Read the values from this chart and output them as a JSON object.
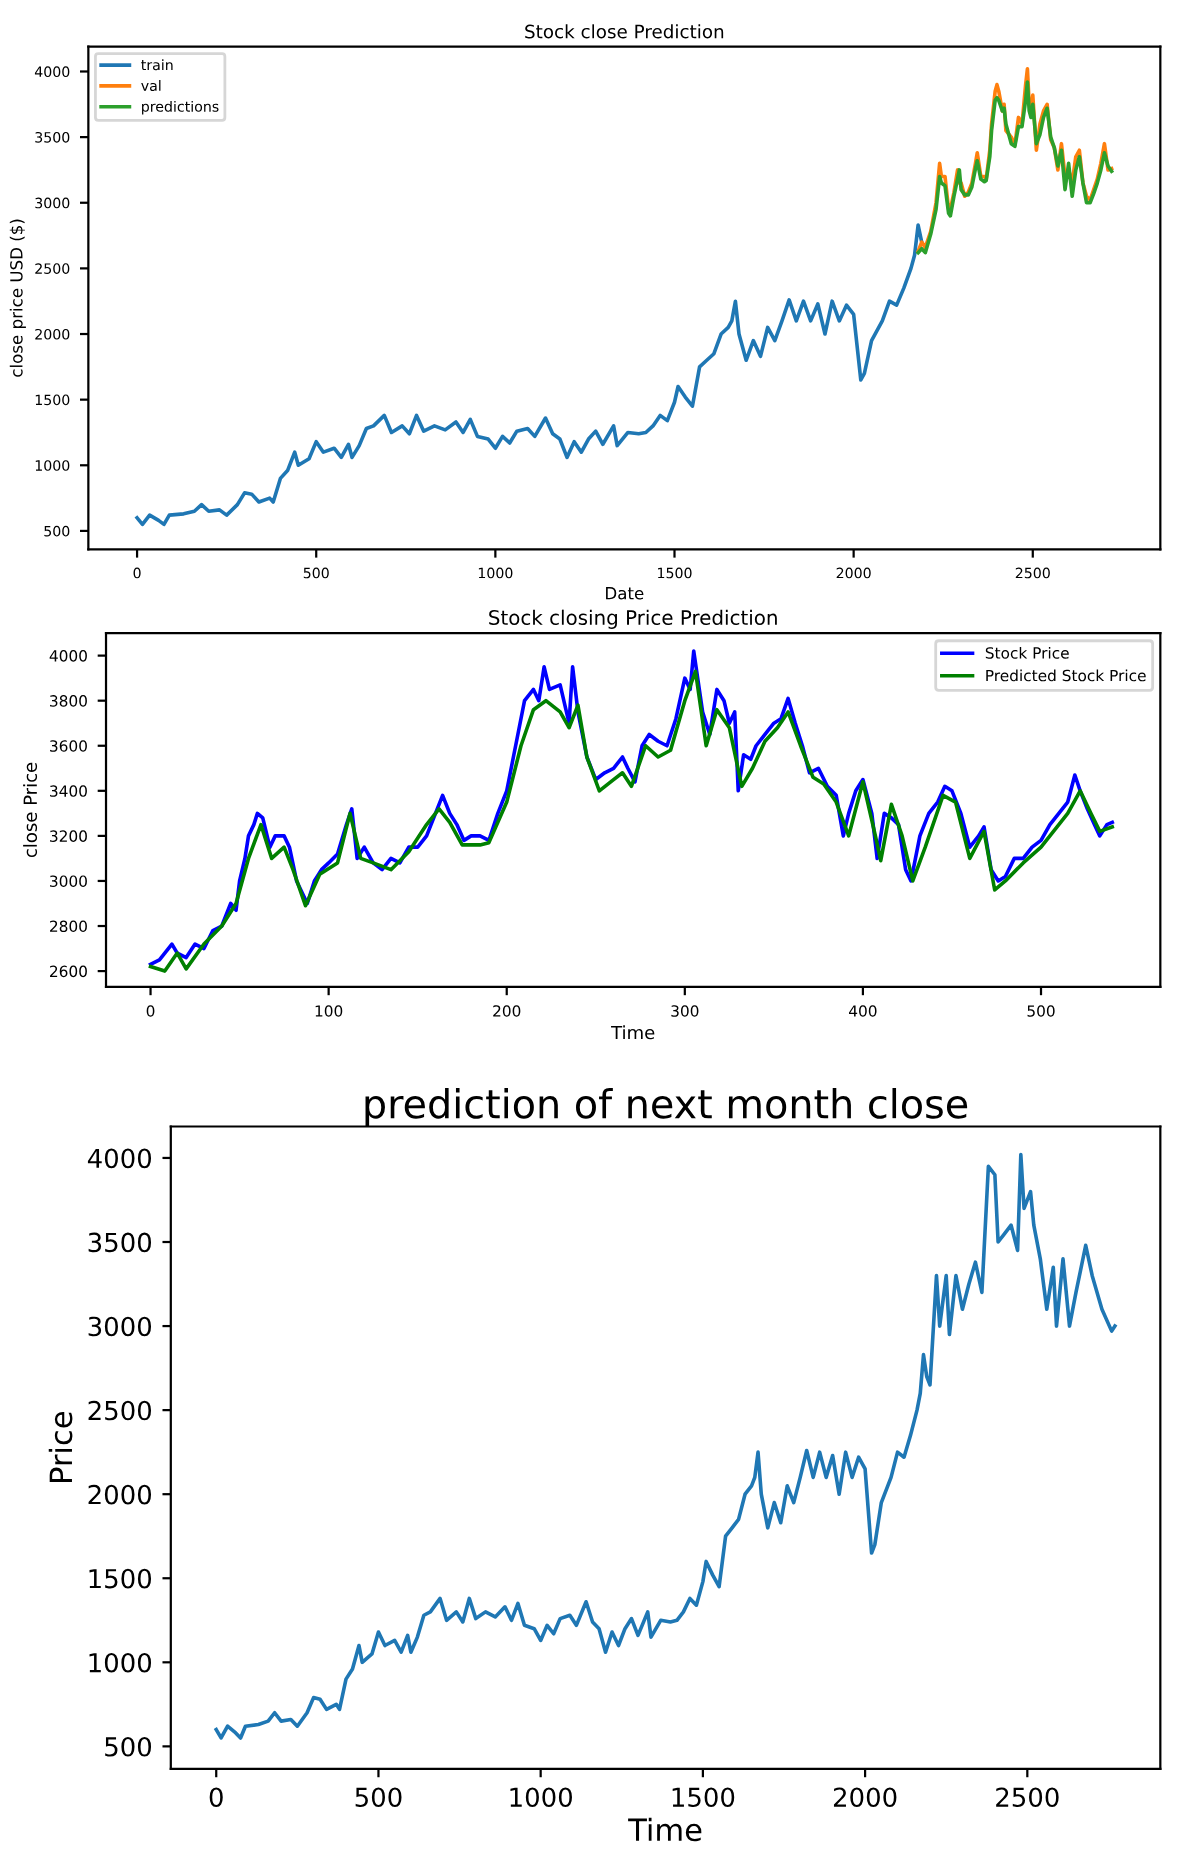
{
  "chart_data": [
    {
      "type": "line",
      "title": "Stock close Prediction",
      "xlabel": "Date",
      "ylabel": "close price USD ($)",
      "xlim": [
        -136,
        2856
      ],
      "ylim": [
        360,
        4190
      ],
      "xticks": [
        0,
        500,
        1000,
        1500,
        2000,
        2500
      ],
      "yticks": [
        500,
        1000,
        1500,
        2000,
        2500,
        3000,
        3500,
        4000
      ],
      "legend": "top left",
      "grid": false,
      "series": [
        {
          "name": "train",
          "color": "#1f77b4",
          "x": [
            0,
            15,
            35,
            60,
            75,
            90,
            130,
            160,
            180,
            200,
            230,
            250,
            280,
            300,
            320,
            340,
            370,
            380,
            400,
            420,
            440,
            450,
            480,
            500,
            520,
            550,
            570,
            590,
            600,
            620,
            640,
            660,
            690,
            710,
            740,
            760,
            780,
            800,
            830,
            860,
            890,
            910,
            930,
            950,
            980,
            1000,
            1020,
            1040,
            1060,
            1090,
            1110,
            1140,
            1160,
            1180,
            1200,
            1220,
            1240,
            1260,
            1280,
            1300,
            1330,
            1340,
            1370,
            1400,
            1420,
            1440,
            1460,
            1480,
            1500,
            1510,
            1530,
            1550,
            1570,
            1590,
            1610,
            1630,
            1650,
            1660,
            1670,
            1680,
            1700,
            1720,
            1740,
            1760,
            1780,
            1800,
            1820,
            1840,
            1860,
            1880,
            1900,
            1920,
            1940,
            1960,
            1980,
            2000,
            2020,
            2030,
            2050,
            2080,
            2100,
            2120,
            2140,
            2160,
            2170,
            2180,
            2190
          ],
          "values": [
            600,
            550,
            620,
            580,
            550,
            620,
            630,
            650,
            700,
            650,
            660,
            620,
            700,
            790,
            780,
            720,
            750,
            720,
            900,
            960,
            1100,
            1000,
            1050,
            1180,
            1100,
            1130,
            1060,
            1160,
            1060,
            1150,
            1280,
            1300,
            1380,
            1250,
            1300,
            1240,
            1380,
            1260,
            1300,
            1270,
            1330,
            1250,
            1350,
            1220,
            1200,
            1130,
            1220,
            1170,
            1260,
            1280,
            1220,
            1360,
            1240,
            1200,
            1060,
            1180,
            1100,
            1200,
            1260,
            1160,
            1300,
            1150,
            1250,
            1240,
            1250,
            1300,
            1380,
            1340,
            1480,
            1600,
            1520,
            1450,
            1750,
            1800,
            1850,
            2000,
            2050,
            2100,
            2250,
            2000,
            1800,
            1950,
            1830,
            2050,
            1950,
            2100,
            2260,
            2100,
            2250,
            2100,
            2230,
            2000,
            2250,
            2100,
            2220,
            2150,
            1650,
            1700,
            1950,
            2100,
            2250,
            2220,
            2350,
            2500,
            2600,
            2830,
            2700
          ]
        },
        {
          "name": "val",
          "color": "#ff7f0e",
          "x": [
            2180,
            2190,
            2200,
            2215,
            2230,
            2240,
            2245,
            2255,
            2265,
            2270,
            2280,
            2290,
            2295,
            2300,
            2310,
            2320,
            2330,
            2340,
            2345,
            2355,
            2365,
            2370,
            2380,
            2385,
            2395,
            2400,
            2405,
            2415,
            2420,
            2425,
            2440,
            2450,
            2460,
            2470,
            2480,
            2485,
            2490,
            2495,
            2500,
            2510,
            2520,
            2530,
            2540,
            2550,
            2560,
            2570,
            2580,
            2590,
            2600,
            2610,
            2620,
            2630,
            2640,
            2650,
            2660,
            2670,
            2680,
            2690,
            2700,
            2710,
            2720
          ],
          "values": [
            2630,
            2700,
            2660,
            2780,
            3000,
            3300,
            3200,
            3200,
            2950,
            2950,
            3080,
            3250,
            3150,
            3150,
            3050,
            3080,
            3150,
            3300,
            3380,
            3200,
            3200,
            3180,
            3400,
            3600,
            3850,
            3900,
            3850,
            3700,
            3750,
            3550,
            3500,
            3440,
            3650,
            3600,
            3900,
            4020,
            3750,
            3700,
            3820,
            3400,
            3600,
            3700,
            3750,
            3480,
            3420,
            3250,
            3450,
            3200,
            3250,
            3150,
            3350,
            3400,
            3150,
            3050,
            3020,
            3100,
            3180,
            3300,
            3450,
            3250,
            3260
          ]
        },
        {
          "name": "predictions",
          "color": "#2ca02c",
          "x": [
            2180,
            2190,
            2200,
            2215,
            2230,
            2240,
            2245,
            2255,
            2265,
            2270,
            2280,
            2290,
            2295,
            2300,
            2310,
            2320,
            2330,
            2340,
            2345,
            2355,
            2365,
            2370,
            2380,
            2385,
            2395,
            2400,
            2405,
            2415,
            2420,
            2425,
            2440,
            2450,
            2460,
            2470,
            2480,
            2485,
            2490,
            2495,
            2500,
            2510,
            2520,
            2530,
            2540,
            2550,
            2560,
            2570,
            2580,
            2590,
            2600,
            2610,
            2620,
            2630,
            2640,
            2650,
            2660,
            2670,
            2680,
            2690,
            2700,
            2710,
            2720
          ],
          "values": [
            2620,
            2650,
            2620,
            2760,
            2950,
            3200,
            3150,
            3130,
            2920,
            2900,
            3050,
            3180,
            3250,
            3100,
            3060,
            3060,
            3120,
            3260,
            3320,
            3180,
            3160,
            3170,
            3350,
            3550,
            3780,
            3800,
            3780,
            3700,
            3720,
            3600,
            3450,
            3430,
            3580,
            3580,
            3780,
            3920,
            3700,
            3650,
            3750,
            3450,
            3520,
            3650,
            3720,
            3500,
            3420,
            3280,
            3400,
            3100,
            3300,
            3050,
            3250,
            3350,
            3150,
            3000,
            3000,
            3070,
            3150,
            3250,
            3380,
            3280,
            3240
          ]
        }
      ]
    },
    {
      "type": "line",
      "title": "Stock closing Price Prediction",
      "xlabel": "Time",
      "ylabel": "close Price",
      "xlim": [
        -25,
        567
      ],
      "ylim": [
        2530,
        4100
      ],
      "xticks": [
        0,
        100,
        200,
        300,
        400,
        500
      ],
      "yticks": [
        2600,
        2800,
        3000,
        3200,
        3400,
        3600,
        3800,
        4000
      ],
      "legend": "top right",
      "grid": false,
      "series": [
        {
          "name": "Stock Price",
          "color": "#0000ff",
          "x": [
            0,
            5,
            10,
            12,
            15,
            20,
            25,
            30,
            35,
            40,
            45,
            48,
            50,
            53,
            55,
            58,
            60,
            63,
            67,
            70,
            75,
            78,
            82,
            85,
            88,
            92,
            96,
            100,
            105,
            110,
            113,
            116,
            120,
            125,
            130,
            135,
            140,
            145,
            150,
            155,
            160,
            164,
            168,
            172,
            176,
            180,
            185,
            190,
            195,
            200,
            205,
            210,
            215,
            218,
            221,
            224,
            230,
            235,
            237,
            240,
            245,
            250,
            255,
            260,
            265,
            268,
            272,
            276,
            280,
            285,
            290,
            295,
            300,
            303,
            305,
            310,
            314,
            318,
            322,
            325,
            328,
            330,
            333,
            337,
            340,
            345,
            350,
            354,
            358,
            362,
            366,
            370,
            375,
            380,
            385,
            389,
            392,
            396,
            400,
            405,
            408,
            412,
            416,
            420,
            424,
            427,
            432,
            437,
            442,
            446,
            450,
            455,
            460,
            465,
            468,
            472,
            476,
            480,
            485,
            490,
            495,
            500,
            505,
            510,
            515,
            519,
            522,
            526,
            530,
            533,
            537,
            540
          ],
          "values": [
            2630,
            2650,
            2700,
            2720,
            2680,
            2660,
            2720,
            2700,
            2780,
            2800,
            2900,
            2870,
            3000,
            3100,
            3200,
            3250,
            3300,
            3280,
            3150,
            3200,
            3200,
            3150,
            3000,
            2950,
            2900,
            3000,
            3050,
            3080,
            3120,
            3250,
            3320,
            3100,
            3150,
            3080,
            3050,
            3100,
            3080,
            3150,
            3150,
            3200,
            3300,
            3380,
            3300,
            3250,
            3180,
            3200,
            3200,
            3180,
            3300,
            3400,
            3600,
            3800,
            3850,
            3800,
            3950,
            3850,
            3870,
            3700,
            3950,
            3750,
            3550,
            3450,
            3480,
            3500,
            3550,
            3500,
            3440,
            3600,
            3650,
            3620,
            3600,
            3720,
            3900,
            3850,
            4020,
            3750,
            3650,
            3850,
            3800,
            3700,
            3750,
            3400,
            3560,
            3540,
            3600,
            3650,
            3700,
            3720,
            3810,
            3700,
            3600,
            3480,
            3500,
            3420,
            3380,
            3200,
            3300,
            3400,
            3450,
            3300,
            3100,
            3300,
            3280,
            3250,
            3050,
            3000,
            3200,
            3300,
            3350,
            3420,
            3400,
            3300,
            3150,
            3200,
            3240,
            3050,
            3000,
            3020,
            3100,
            3100,
            3150,
            3180,
            3250,
            3300,
            3350,
            3470,
            3400,
            3320,
            3250,
            3200,
            3250,
            3260
          ]
        },
        {
          "name": "Predicted Stock Price",
          "color": "#008000",
          "x": [
            0,
            8,
            15,
            20,
            30,
            40,
            48,
            55,
            62,
            68,
            75,
            80,
            87,
            95,
            105,
            112,
            118,
            125,
            135,
            145,
            155,
            162,
            168,
            175,
            185,
            190,
            200,
            208,
            215,
            222,
            230,
            235,
            240,
            245,
            252,
            260,
            265,
            270,
            278,
            285,
            292,
            300,
            306,
            312,
            318,
            325,
            332,
            338,
            345,
            352,
            358,
            365,
            372,
            378,
            385,
            392,
            400,
            407,
            410,
            416,
            422,
            428,
            435,
            445,
            452,
            460,
            468,
            474,
            480,
            490,
            500,
            510,
            515,
            522,
            528,
            533,
            540
          ],
          "values": [
            2620,
            2600,
            2680,
            2610,
            2720,
            2800,
            2900,
            3100,
            3250,
            3100,
            3150,
            3050,
            2890,
            3030,
            3080,
            3300,
            3100,
            3080,
            3050,
            3130,
            3250,
            3320,
            3260,
            3160,
            3160,
            3170,
            3350,
            3600,
            3760,
            3800,
            3750,
            3680,
            3780,
            3550,
            3400,
            3450,
            3480,
            3420,
            3600,
            3550,
            3580,
            3800,
            3930,
            3600,
            3760,
            3680,
            3420,
            3500,
            3620,
            3680,
            3750,
            3600,
            3460,
            3430,
            3350,
            3200,
            3440,
            3200,
            3090,
            3340,
            3200,
            3000,
            3150,
            3380,
            3350,
            3100,
            3220,
            2960,
            3000,
            3080,
            3150,
            3250,
            3300,
            3400,
            3300,
            3220,
            3240
          ]
        }
      ]
    },
    {
      "type": "line",
      "title": "prediction of next month close",
      "xlabel": "Time",
      "ylabel": "Price",
      "xlim": [
        -140,
        2910
      ],
      "ylim": [
        366,
        4187
      ],
      "xticks": [
        0,
        500,
        1000,
        1500,
        2000,
        2500
      ],
      "yticks": [
        500,
        1000,
        1500,
        2000,
        2500,
        3000,
        3500,
        4000
      ],
      "grid": false,
      "series": [
        {
          "color": "#1f77b4",
          "x": [
            0,
            15,
            35,
            60,
            75,
            90,
            130,
            160,
            180,
            200,
            230,
            250,
            280,
            300,
            320,
            340,
            370,
            380,
            400,
            420,
            440,
            450,
            480,
            500,
            520,
            550,
            570,
            590,
            600,
            620,
            640,
            660,
            690,
            710,
            740,
            760,
            780,
            800,
            830,
            860,
            890,
            910,
            930,
            950,
            980,
            1000,
            1020,
            1040,
            1060,
            1090,
            1110,
            1140,
            1160,
            1180,
            1200,
            1220,
            1240,
            1260,
            1280,
            1300,
            1330,
            1340,
            1370,
            1400,
            1420,
            1440,
            1460,
            1480,
            1500,
            1510,
            1530,
            1550,
            1570,
            1590,
            1610,
            1630,
            1650,
            1660,
            1670,
            1680,
            1700,
            1720,
            1740,
            1760,
            1780,
            1800,
            1820,
            1840,
            1860,
            1880,
            1900,
            1920,
            1940,
            1960,
            1980,
            2000,
            2020,
            2030,
            2050,
            2080,
            2100,
            2120,
            2140,
            2160,
            2170,
            2180,
            2190,
            2200,
            2220,
            2230,
            2250,
            2260,
            2280,
            2300,
            2320,
            2340,
            2360,
            2380,
            2400,
            2410,
            2430,
            2450,
            2470,
            2480,
            2490,
            2510,
            2520,
            2540,
            2560,
            2580,
            2590,
            2610,
            2630,
            2650,
            2680,
            2700,
            2730,
            2760,
            2770
          ],
          "values": [
            600,
            550,
            620,
            580,
            550,
            620,
            630,
            650,
            700,
            650,
            660,
            620,
            700,
            790,
            780,
            720,
            750,
            720,
            900,
            960,
            1100,
            1000,
            1050,
            1180,
            1100,
            1130,
            1060,
            1160,
            1060,
            1150,
            1280,
            1300,
            1380,
            1250,
            1300,
            1240,
            1380,
            1260,
            1300,
            1270,
            1330,
            1250,
            1350,
            1220,
            1200,
            1130,
            1220,
            1170,
            1260,
            1280,
            1220,
            1360,
            1240,
            1200,
            1060,
            1180,
            1100,
            1200,
            1260,
            1160,
            1300,
            1150,
            1250,
            1240,
            1250,
            1300,
            1380,
            1340,
            1480,
            1600,
            1520,
            1450,
            1750,
            1800,
            1850,
            2000,
            2050,
            2100,
            2250,
            2000,
            1800,
            1950,
            1830,
            2050,
            1950,
            2100,
            2260,
            2100,
            2250,
            2100,
            2230,
            2000,
            2250,
            2100,
            2220,
            2150,
            1650,
            1700,
            1950,
            2100,
            2250,
            2220,
            2350,
            2500,
            2600,
            2830,
            2700,
            2650,
            3300,
            3000,
            3300,
            2950,
            3300,
            3100,
            3250,
            3380,
            3200,
            3950,
            3900,
            3500,
            3550,
            3600,
            3450,
            4020,
            3700,
            3800,
            3600,
            3400,
            3100,
            3350,
            3000,
            3400,
            3000,
            3200,
            3480,
            3300,
            3100,
            2970,
            3000
          ]
        }
      ]
    }
  ]
}
